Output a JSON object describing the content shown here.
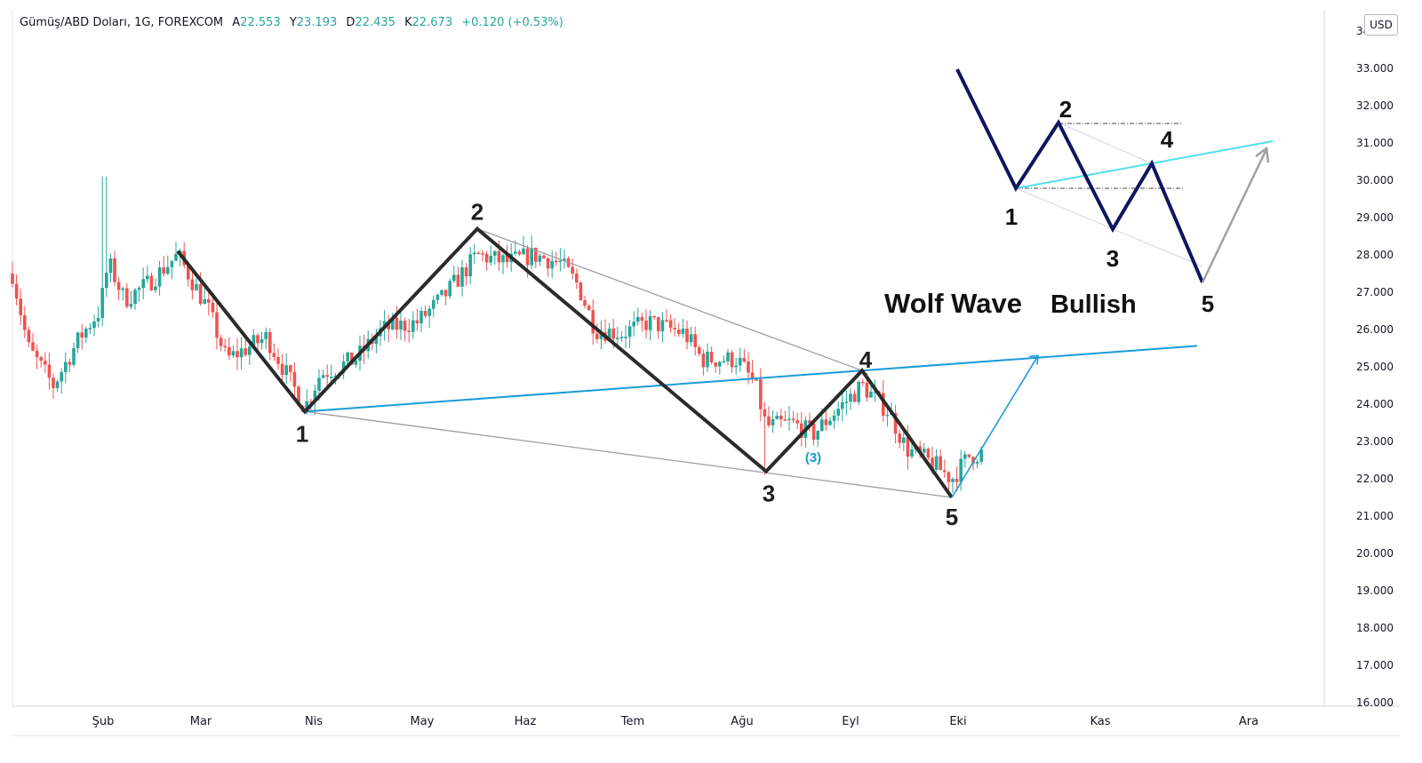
{
  "header": {
    "symbol": "Gümüş/ABD Doları, 1G, FOREXCOM",
    "open_label": "A",
    "open_value": "22.553",
    "high_label": "Y",
    "high_value": "23.193",
    "low_label": "D",
    "low_value": "22.435",
    "close_label": "K",
    "close_value": "22.673",
    "change": "+0.120 (+0.53%)"
  },
  "currency": "USD",
  "colors": {
    "up": "#26a69a",
    "down": "#ef5350",
    "wave": "#2b2b2b",
    "trendline": "#1a9bd7",
    "inset_wave": "#0f1560",
    "inset_trend": "#4fe0ea"
  },
  "chart_data": {
    "type": "candlestick",
    "title": "Wolf Wave Bullish",
    "ylim": [
      16,
      34
    ],
    "y_ticks": [
      "33.000",
      "32.000",
      "31.000",
      "30.000",
      "29.000",
      "28.000",
      "27.000",
      "26.000",
      "25.000",
      "24.000",
      "23.000",
      "22.000",
      "21.000",
      "20.000",
      "19.000",
      "18.000",
      "17.000",
      "16.000"
    ],
    "x_labels": [
      "Şub",
      "Mar",
      "Nis",
      "May",
      "Haz",
      "Tem",
      "Ağu",
      "Eyl",
      "Eki",
      "Kas",
      "Ara"
    ],
    "wave_points": [
      {
        "label": "1",
        "price": 23.8
      },
      {
        "label": "2",
        "price": 28.7
      },
      {
        "label": "3",
        "price": 22.2
      },
      {
        "label": "4",
        "price": 24.9
      },
      {
        "label": "5",
        "price": 21.5
      }
    ],
    "sub_label": "(3)",
    "wave_start_price": 28.1,
    "target_price": 25.3
  },
  "inset": {
    "title": "Wolf Wave",
    "subtitle": "Bullish",
    "labels": [
      "1",
      "2",
      "3",
      "4",
      "5"
    ]
  }
}
